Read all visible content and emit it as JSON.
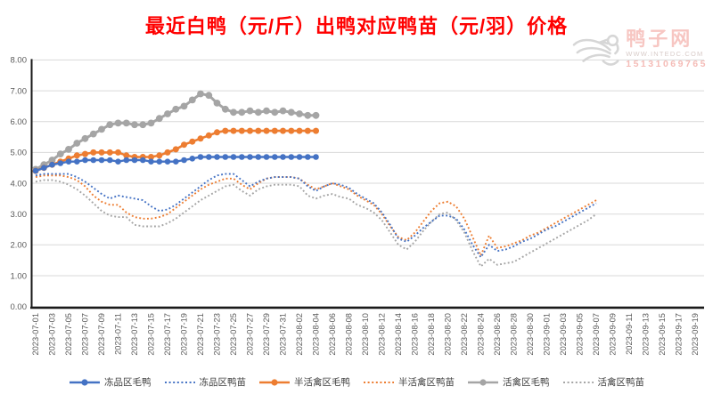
{
  "title": {
    "text": "最近白鸭（元/斤）出鸭对应鸭苗（元/羽）价格",
    "color": "#FF0000"
  },
  "watermark": {
    "site_name": "鸭子网",
    "url": "WWW.INTEDC.COM",
    "phone": "15131069765",
    "logo": "duck-logo"
  },
  "chart_data": {
    "type": "line",
    "title": "最近白鸭（元/斤）出鸭对应鸭苗（元/羽）价格",
    "grid": true,
    "legend_position": "bottom",
    "ylim": [
      0,
      8
    ],
    "y_tick_labels": [
      "8.00",
      "7.00",
      "6.00",
      "5.00",
      "4.00",
      "3.00",
      "2.00",
      "1.00",
      "0.00"
    ],
    "x_start": "2023-07-01",
    "x_end": "2023-09-19",
    "x_interval_days": 1,
    "num_categories": 81,
    "x_tick_labels": [
      "2023-07-01",
      "2023-07-03",
      "2023-07-05",
      "2023-07-07",
      "2023-07-09",
      "2023-07-11",
      "2023-07-13",
      "2023-07-15",
      "2023-07-17",
      "2023-07-19",
      "2023-07-21",
      "2023-07-23",
      "2023-07-25",
      "2023-07-27",
      "2023-07-29",
      "2023-07-31",
      "2023-08-02",
      "2023-08-04",
      "2023-08-06",
      "2023-08-08",
      "2023-08-10",
      "2023-08-12",
      "2023-08-14",
      "2023-08-16",
      "2023-08-18",
      "2023-08-20",
      "2023-08-22",
      "2023-08-24",
      "2023-08-26",
      "2023-08-28",
      "2023-08-30",
      "2023-09-01",
      "2023-09-03",
      "2023-09-05",
      "2023-09-07",
      "2023-09-09",
      "2023-09-11",
      "2023-09-13",
      "2023-09-15",
      "2023-09-17",
      "2023-09-19"
    ],
    "series": [
      {
        "name": "冻品区毛鸭",
        "color": "#4472C4",
        "line": "solid",
        "marker": "circle",
        "start_date": "2023-07-01",
        "end_date": "2023-08-04",
        "values": [
          4.4,
          4.5,
          4.6,
          4.65,
          4.7,
          4.7,
          4.75,
          4.75,
          4.75,
          4.75,
          4.7,
          4.75,
          4.75,
          4.75,
          4.7,
          4.7,
          4.7,
          4.7,
          4.75,
          4.8,
          4.85,
          4.85,
          4.85,
          4.85,
          4.85,
          4.85,
          4.85,
          4.85,
          4.85,
          4.85,
          4.85,
          4.85,
          4.85,
          4.85,
          4.85
        ]
      },
      {
        "name": "冻品区鸭苗",
        "color": "#4472C4",
        "line": "dotted",
        "marker": "none",
        "start_date": "2023-07-01",
        "end_date": "2023-09-07",
        "values": [
          4.25,
          4.3,
          4.3,
          4.3,
          4.3,
          4.2,
          4.05,
          3.85,
          3.65,
          3.5,
          3.6,
          3.55,
          3.5,
          3.45,
          3.25,
          3.1,
          3.15,
          3.3,
          3.5,
          3.7,
          3.9,
          4.1,
          4.25,
          4.3,
          4.3,
          4.1,
          3.9,
          4.05,
          4.15,
          4.2,
          4.2,
          4.2,
          4.15,
          3.9,
          3.75,
          3.9,
          4.0,
          3.95,
          3.85,
          3.65,
          3.5,
          3.35,
          3.05,
          2.65,
          2.2,
          2.1,
          2.3,
          2.55,
          2.75,
          2.95,
          2.95,
          2.85,
          2.5,
          2.0,
          1.6,
          2.0,
          1.8,
          1.85,
          1.95,
          2.1,
          2.2,
          2.35,
          2.5,
          2.6,
          2.75,
          2.9,
          3.05,
          3.2,
          3.35
        ]
      },
      {
        "name": "半活禽区毛鸭",
        "color": "#ED7D31",
        "line": "solid",
        "marker": "circle",
        "start_date": "2023-07-01",
        "end_date": "2023-08-04",
        "values": [
          4.4,
          4.5,
          4.6,
          4.7,
          4.8,
          4.9,
          4.95,
          5.0,
          5.0,
          5.0,
          5.0,
          4.9,
          4.85,
          4.85,
          4.85,
          4.9,
          5.0,
          5.1,
          5.25,
          5.35,
          5.45,
          5.55,
          5.65,
          5.7,
          5.7,
          5.7,
          5.7,
          5.7,
          5.7,
          5.7,
          5.7,
          5.7,
          5.7,
          5.7,
          5.7
        ]
      },
      {
        "name": "半活禽区鸭苗",
        "color": "#ED7D31",
        "line": "dotted",
        "marker": "none",
        "start_date": "2023-07-01",
        "end_date": "2023-09-07",
        "values": [
          4.2,
          4.25,
          4.25,
          4.25,
          4.2,
          4.1,
          3.9,
          3.6,
          3.4,
          3.3,
          3.3,
          3.05,
          2.9,
          2.85,
          2.85,
          2.9,
          3.0,
          3.2,
          3.4,
          3.6,
          3.8,
          3.95,
          4.05,
          4.15,
          4.15,
          3.95,
          3.8,
          4.0,
          4.15,
          4.2,
          4.2,
          4.2,
          4.15,
          3.95,
          3.8,
          3.9,
          4.0,
          3.9,
          3.8,
          3.6,
          3.45,
          3.3,
          3.0,
          2.6,
          2.25,
          2.15,
          2.4,
          2.75,
          3.1,
          3.35,
          3.4,
          3.25,
          2.85,
          2.25,
          1.65,
          2.3,
          1.9,
          1.95,
          2.05,
          2.15,
          2.3,
          2.4,
          2.55,
          2.7,
          2.85,
          3.0,
          3.15,
          3.3,
          3.45
        ]
      },
      {
        "name": "活禽区毛鸭",
        "color": "#A5A5A5",
        "line": "solid",
        "marker": "circle",
        "start_date": "2023-07-01",
        "end_date": "2023-08-04",
        "values": [
          4.45,
          4.6,
          4.75,
          4.95,
          5.1,
          5.3,
          5.45,
          5.6,
          5.75,
          5.9,
          5.95,
          5.95,
          5.9,
          5.9,
          5.95,
          6.1,
          6.25,
          6.4,
          6.5,
          6.7,
          6.9,
          6.85,
          6.6,
          6.4,
          6.3,
          6.3,
          6.35,
          6.3,
          6.35,
          6.3,
          6.35,
          6.3,
          6.25,
          6.2,
          6.2
        ]
      },
      {
        "name": "活禽区鸭苗",
        "color": "#A5A5A5",
        "line": "dotted",
        "marker": "none",
        "start_date": "2023-07-01",
        "end_date": "2023-09-07",
        "values": [
          4.05,
          4.1,
          4.1,
          4.05,
          3.95,
          3.8,
          3.6,
          3.35,
          3.1,
          2.95,
          2.9,
          2.9,
          2.65,
          2.6,
          2.6,
          2.6,
          2.7,
          2.85,
          3.05,
          3.25,
          3.45,
          3.6,
          3.75,
          3.9,
          3.95,
          3.75,
          3.6,
          3.8,
          3.9,
          3.95,
          3.95,
          3.95,
          3.9,
          3.6,
          3.5,
          3.6,
          3.65,
          3.55,
          3.5,
          3.3,
          3.2,
          3.05,
          2.8,
          2.4,
          2.0,
          1.85,
          2.1,
          2.45,
          2.75,
          3.0,
          3.05,
          2.8,
          2.4,
          1.8,
          1.3,
          1.55,
          1.35,
          1.4,
          1.45,
          1.6,
          1.75,
          1.9,
          2.05,
          2.2,
          2.35,
          2.5,
          2.65,
          2.8,
          3.0
        ]
      }
    ],
    "axis_color": "#1a1a1a",
    "gridline_color": "#d9d9d9",
    "tick_label_color": "#595959"
  }
}
